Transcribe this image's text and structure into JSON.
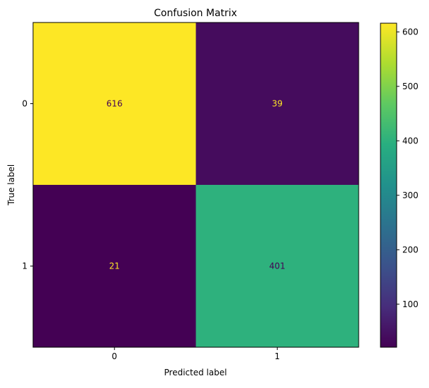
{
  "chart_data": {
    "type": "heatmap",
    "title": "Confusion Matrix",
    "xlabel": "Predicted label",
    "ylabel": "True label",
    "x_categories": [
      "0",
      "1"
    ],
    "y_categories": [
      "0",
      "1"
    ],
    "values": [
      [
        616,
        39
      ],
      [
        21,
        401
      ]
    ],
    "colormap": "viridis",
    "color_range": [
      21,
      616
    ],
    "colorbar_ticks": [
      100,
      200,
      300,
      400,
      500,
      600
    ],
    "colorbar_tick_labels": [
      "100",
      "200",
      "300",
      "400",
      "500",
      "600"
    ],
    "text_colors": {
      "on_dark": "#fde725",
      "on_light": "#440154"
    }
  }
}
